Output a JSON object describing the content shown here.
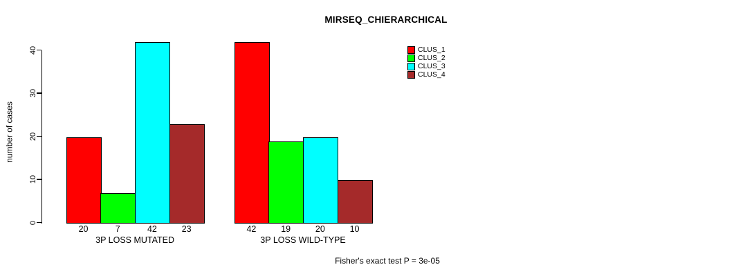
{
  "chart_data": {
    "type": "bar",
    "title": "MIRSEQ_CHIERARCHICAL",
    "ylabel": "number of cases",
    "xlabel": "",
    "ylim": [
      0,
      44
    ],
    "yticks": [
      0,
      10,
      20,
      30,
      40
    ],
    "grid": false,
    "legend_position": "top-right-inside",
    "categories": [
      "3P LOSS MUTATED",
      "3P LOSS WILD-TYPE"
    ],
    "series": [
      {
        "name": "CLUS_1",
        "color": "#ff0000",
        "values": [
          20,
          42
        ]
      },
      {
        "name": "CLUS_2",
        "color": "#00ff00",
        "values": [
          7,
          19
        ]
      },
      {
        "name": "CLUS_3",
        "color": "#00ffff",
        "values": [
          42,
          20
        ]
      },
      {
        "name": "CLUS_4",
        "color": "#a52a2a",
        "values": [
          23,
          10
        ]
      }
    ],
    "bar_value_labels": [
      [
        "20",
        "7",
        "42",
        "23"
      ],
      [
        "42",
        "19",
        "20",
        "10"
      ]
    ],
    "annotation": "Fisher's exact test P = 3e-05"
  }
}
